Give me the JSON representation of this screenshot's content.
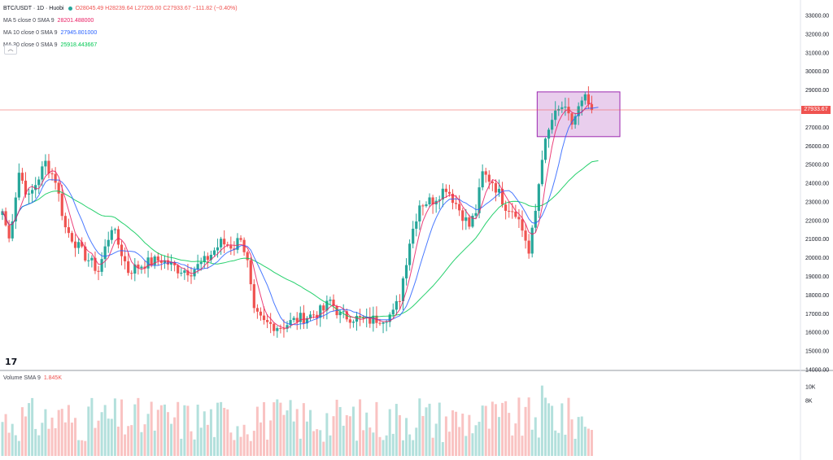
{
  "header": {
    "symbol": "BTC/USDT · 1D · Huobi",
    "ohlc": "O28045.49 H28239.64 L27205.00 C27933.67 −111.82 (−0.40%)",
    "ma5_label": "MA 5 close 0 SMA 9",
    "ma5_value": "28201.488000",
    "ma10_label": "MA 10 close 0 SMA 9",
    "ma10_value": "27945.801000",
    "ma30_label": "MA 30 close 0 SMA 9",
    "ma30_value": "25918.443667",
    "collapse_icon": "chevron-up-icon",
    "collapse_glyph": "︿"
  },
  "volume_legend": {
    "label": "Volume SMA 9",
    "value": "1.845K"
  },
  "logo_text": "17",
  "last_price_label": "27933.67",
  "colors": {
    "up": "#26a69a",
    "down": "#ef5350",
    "ma5": "#e91e63",
    "ma10": "#2962ff",
    "ma30": "#00c853",
    "highlight_fill": "#e1bee7",
    "highlight_stroke": "#9c27b0"
  },
  "chart_data": {
    "type": "candlestick",
    "y_ticks": [
      "33000.00",
      "32000.00",
      "31000.00",
      "30000.00",
      "29000.00",
      "28000.00",
      "27000.00",
      "26000.00",
      "25000.00",
      "24000.00",
      "23000.00",
      "22000.00",
      "21000.00",
      "20000.00",
      "19000.00",
      "18000.00",
      "17000.00",
      "16000.00",
      "15000.00",
      "14000.00"
    ],
    "ylim": [
      14000,
      33500
    ],
    "volume_ticks": [
      "10K",
      "8K"
    ],
    "volume_ylim": [
      0,
      12000
    ],
    "last_price": 27933.67,
    "highlight_box": {
      "x_start_index": 162,
      "x_end_index": 186,
      "y_low": 26500,
      "y_high": 28900
    },
    "anchors": [
      {
        "i": 0,
        "p": 22500
      },
      {
        "i": 2,
        "p": 21000
      },
      {
        "i": 5,
        "p": 24600
      },
      {
        "i": 8,
        "p": 23200
      },
      {
        "i": 13,
        "p": 25100
      },
      {
        "i": 16,
        "p": 24200
      },
      {
        "i": 19,
        "p": 21600
      },
      {
        "i": 24,
        "p": 20300
      },
      {
        "i": 29,
        "p": 19300
      },
      {
        "i": 33,
        "p": 21700
      },
      {
        "i": 38,
        "p": 19300
      },
      {
        "i": 43,
        "p": 19700
      },
      {
        "i": 48,
        "p": 19900
      },
      {
        "i": 53,
        "p": 19400
      },
      {
        "i": 57,
        "p": 19300
      },
      {
        "i": 61,
        "p": 19800
      },
      {
        "i": 66,
        "p": 20800
      },
      {
        "i": 70,
        "p": 20600
      },
      {
        "i": 72,
        "p": 21200
      },
      {
        "i": 74,
        "p": 19700
      },
      {
        "i": 76,
        "p": 17000
      },
      {
        "i": 79,
        "p": 16500
      },
      {
        "i": 84,
        "p": 16300
      },
      {
        "i": 89,
        "p": 16700
      },
      {
        "i": 93,
        "p": 16900
      },
      {
        "i": 97,
        "p": 17200
      },
      {
        "i": 99,
        "p": 17700
      },
      {
        "i": 102,
        "p": 16900
      },
      {
        "i": 106,
        "p": 16800
      },
      {
        "i": 110,
        "p": 16600
      },
      {
        "i": 115,
        "p": 16800
      },
      {
        "i": 118,
        "p": 17000
      },
      {
        "i": 120,
        "p": 17900
      },
      {
        "i": 123,
        "p": 20900
      },
      {
        "i": 126,
        "p": 22900
      },
      {
        "i": 130,
        "p": 23100
      },
      {
        "i": 134,
        "p": 23800
      },
      {
        "i": 138,
        "p": 22600
      },
      {
        "i": 141,
        "p": 21700
      },
      {
        "i": 143,
        "p": 22500
      },
      {
        "i": 145,
        "p": 24500
      },
      {
        "i": 148,
        "p": 24100
      },
      {
        "i": 152,
        "p": 22800
      },
      {
        "i": 155,
        "p": 22500
      },
      {
        "i": 158,
        "p": 21000
      },
      {
        "i": 159,
        "p": 20200
      },
      {
        "i": 161,
        "p": 22500
      },
      {
        "i": 163,
        "p": 25500
      },
      {
        "i": 166,
        "p": 27400
      },
      {
        "i": 169,
        "p": 28100
      },
      {
        "i": 172,
        "p": 27200
      },
      {
        "i": 174,
        "p": 28000
      },
      {
        "i": 176,
        "p": 28500
      },
      {
        "i": 178,
        "p": 27933.67
      }
    ],
    "ma_series": [
      {
        "name": "MA 5",
        "value": 28201.488
      },
      {
        "name": "MA 10",
        "value": 27945.801
      },
      {
        "name": "MA 30",
        "value": 25918.443667
      }
    ],
    "xlabel": "",
    "ylabel": ""
  }
}
